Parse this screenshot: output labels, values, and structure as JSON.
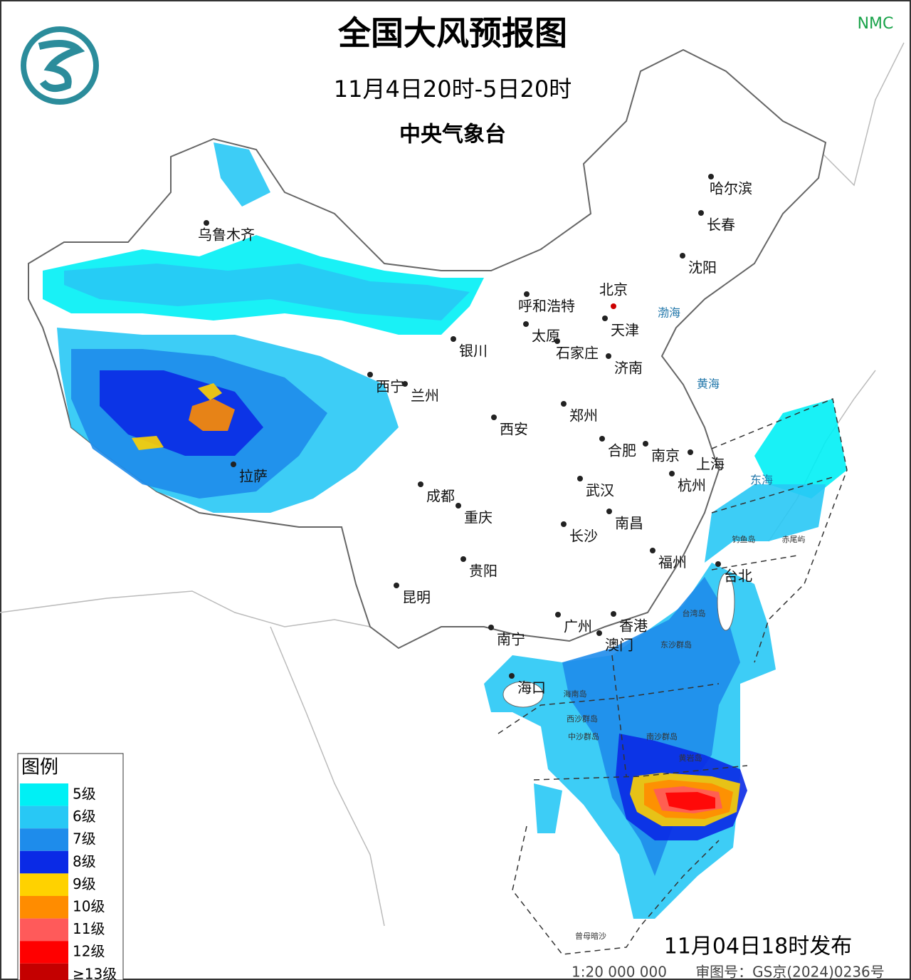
{
  "header": {
    "title": "全国大风预报图",
    "period": "11月4日20时-5日20时",
    "issuer": "中央气象台",
    "brand": "NMC"
  },
  "cities": [
    "北京",
    "天津",
    "哈尔滨",
    "长春",
    "沈阳",
    "呼和浩特",
    "太原",
    "石家庄",
    "济南",
    "银川",
    "西宁",
    "兰州",
    "郑州",
    "西安",
    "合肥",
    "南京",
    "上海",
    "杭州",
    "武汉",
    "成都",
    "重庆",
    "南昌",
    "长沙",
    "福州",
    "台北",
    "贵阳",
    "昆明",
    "广州",
    "香港",
    "澳门",
    "南宁",
    "海口",
    "乌鲁木齐",
    "拉萨"
  ],
  "seas": [
    "渤海",
    "黄海",
    "东海"
  ],
  "islands": [
    "钓鱼岛",
    "赤尾屿",
    "台湾岛",
    "东沙群岛",
    "海南岛",
    "西沙群岛",
    "中沙群岛",
    "黄岩岛",
    "南沙群岛",
    "曾母暗沙"
  ],
  "legend": {
    "title": "图例",
    "items": [
      {
        "label": "5级",
        "color": "#00f0f5"
      },
      {
        "label": "6级",
        "color": "#28c8f5"
      },
      {
        "label": "7级",
        "color": "#1e8ceb"
      },
      {
        "label": "8级",
        "color": "#0a2ae6"
      },
      {
        "label": "9级",
        "color": "#ffd200"
      },
      {
        "label": "10级",
        "color": "#ff8c00"
      },
      {
        "label": "11级",
        "color": "#ff5a5a"
      },
      {
        "label": "12级",
        "color": "#ff0000"
      },
      {
        "label": "≥13级",
        "color": "#c40000"
      }
    ]
  },
  "footer": {
    "issued": "11月04日18时发布",
    "scale": "1:20 000 000",
    "approval": "审图号：GS京(2024)0236号"
  }
}
